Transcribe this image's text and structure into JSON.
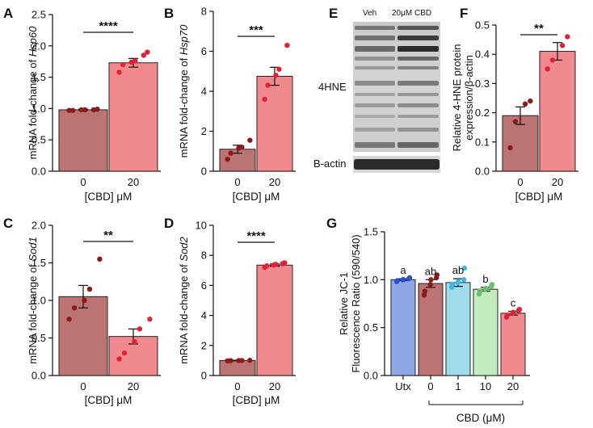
{
  "chart_data": [
    {
      "panel": "A",
      "type": "bar",
      "ylabel_prefix": "mRNA fold-change of ",
      "ylabel_gene": "Hsp60",
      "xlabel": "[CBD] μM",
      "categories": [
        "0",
        "20"
      ],
      "values": [
        0.98,
        1.73
      ],
      "sem": [
        0.01,
        0.07
      ],
      "points": [
        [
          0.97,
          0.97,
          0.98,
          0.98,
          0.98,
          0.99
        ],
        [
          1.58,
          1.7,
          1.74,
          1.76,
          1.85,
          1.9
        ]
      ],
      "ylim": [
        0,
        2.5
      ],
      "yticks": [
        "0.0",
        "0.5",
        "1.0",
        "1.5",
        "2.0",
        "2.5"
      ],
      "significance": "****",
      "bar_colors": [
        "#bc7473",
        "#f18a8e"
      ],
      "point_colors": [
        "#8b1a1a",
        "#e22234"
      ]
    },
    {
      "panel": "B",
      "type": "bar",
      "ylabel_prefix": "mRNA fold-change of ",
      "ylabel_gene": "Hsp70",
      "xlabel": "[CBD] μM",
      "categories": [
        "0",
        "20"
      ],
      "values": [
        1.1,
        4.75
      ],
      "sem": [
        0.2,
        0.45
      ],
      "points": [
        [
          0.6,
          0.9,
          1.15,
          1.2,
          1.55
        ],
        [
          3.6,
          4.3,
          4.8,
          5.1,
          6.3
        ]
      ],
      "ylim": [
        0,
        8
      ],
      "yticks": [
        "0",
        "2",
        "4",
        "6",
        "8"
      ],
      "significance": "***",
      "bar_colors": [
        "#bc7473",
        "#f18a8e"
      ],
      "point_colors": [
        "#8b1a1a",
        "#e22234"
      ]
    },
    {
      "panel": "C",
      "type": "bar",
      "ylabel_prefix": "mRNA fold-change of ",
      "ylabel_gene": "Sod1",
      "xlabel": "[CBD] μM",
      "categories": [
        "0",
        "20"
      ],
      "values": [
        1.05,
        0.52
      ],
      "sem": [
        0.15,
        0.1
      ],
      "points": [
        [
          0.75,
          0.9,
          1.0,
          1.15,
          1.55
        ],
        [
          0.22,
          0.3,
          0.45,
          0.62,
          0.75
        ]
      ],
      "ylim": [
        0,
        2.0
      ],
      "yticks": [
        "0.0",
        "0.5",
        "1.0",
        "1.5",
        "2.0"
      ],
      "significance": "**",
      "bar_colors": [
        "#bc7473",
        "#f18a8e"
      ],
      "point_colors": [
        "#8b1a1a",
        "#e22234"
      ]
    },
    {
      "panel": "D",
      "type": "bar",
      "ylabel_prefix": "mRNA fold-change of ",
      "ylabel_gene": "Sod2",
      "xlabel": "[CBD] μM",
      "categories": [
        "0",
        "20"
      ],
      "values": [
        1.0,
        7.35
      ],
      "sem": [
        0.02,
        0.08
      ],
      "points": [
        [
          0.98,
          0.99,
          1.0,
          1.0,
          1.01
        ],
        [
          7.2,
          7.3,
          7.35,
          7.4,
          7.45,
          7.5
        ]
      ],
      "ylim": [
        0,
        10
      ],
      "yticks": [
        "0",
        "2",
        "4",
        "6",
        "8",
        "10"
      ],
      "significance": "****",
      "bar_colors": [
        "#bc7473",
        "#f18a8e"
      ],
      "point_colors": [
        "#8b1a1a",
        "#e22234"
      ]
    },
    {
      "panel": "F",
      "type": "bar",
      "ylabel_lines": [
        "Relative 4-HNE protein",
        "expression/β-actin"
      ],
      "xlabel": "[CBD] μM",
      "categories": [
        "0",
        "20"
      ],
      "values": [
        0.19,
        0.41
      ],
      "sem": [
        0.03,
        0.03
      ],
      "points": [
        [
          0.08,
          0.17,
          0.23,
          0.24
        ],
        [
          0.35,
          0.38,
          0.43,
          0.46
        ]
      ],
      "ylim": [
        0,
        0.5
      ],
      "yticks": [
        "0.0",
        "0.1",
        "0.2",
        "0.3",
        "0.4",
        "0.5"
      ],
      "significance": "**",
      "bar_colors": [
        "#bc7473",
        "#f18a8e"
      ],
      "point_colors": [
        "#8b1a1a",
        "#e22234"
      ]
    },
    {
      "panel": "G",
      "type": "bar",
      "ylabel_lines": [
        "Relative JC-1",
        "Fluorescence Ratio (590/540)"
      ],
      "xlabel": "CBD (μM)",
      "categories": [
        "Utx",
        "0",
        "1",
        "10",
        "20"
      ],
      "values": [
        1.0,
        0.96,
        0.97,
        0.9,
        0.65
      ],
      "sem": [
        0.01,
        0.04,
        0.04,
        0.02,
        0.02
      ],
      "points": [
        [
          0.98,
          0.99,
          1.0,
          1.0,
          1.01,
          1.02
        ],
        [
          0.84,
          0.88,
          0.95,
          1.0,
          1.02,
          1.05
        ],
        [
          0.92,
          0.95,
          0.97,
          0.98,
          1.0,
          1.12
        ],
        [
          0.85,
          0.88,
          0.9,
          0.91,
          0.93,
          0.95
        ],
        [
          0.61,
          0.63,
          0.65,
          0.66,
          0.68,
          0.69
        ]
      ],
      "letters": [
        "a",
        "ab",
        "ab",
        "b",
        "c"
      ],
      "ylim": [
        0,
        1.5
      ],
      "yticks": [
        "0.0",
        "0.5",
        "1.0",
        "1.5"
      ],
      "bar_colors": [
        "#8ea7e6",
        "#bc7473",
        "#9fdcec",
        "#c3ecbf",
        "#f18a8e"
      ],
      "point_colors": [
        "#2a4fcf",
        "#8b1a1a",
        "#41b6e6",
        "#6cc06a",
        "#e22234"
      ]
    }
  ],
  "western_blot": {
    "panel": "E",
    "lanes": [
      "Veh",
      "20μM CBD"
    ],
    "band_labels": [
      "4HNE",
      "B-actin"
    ]
  }
}
